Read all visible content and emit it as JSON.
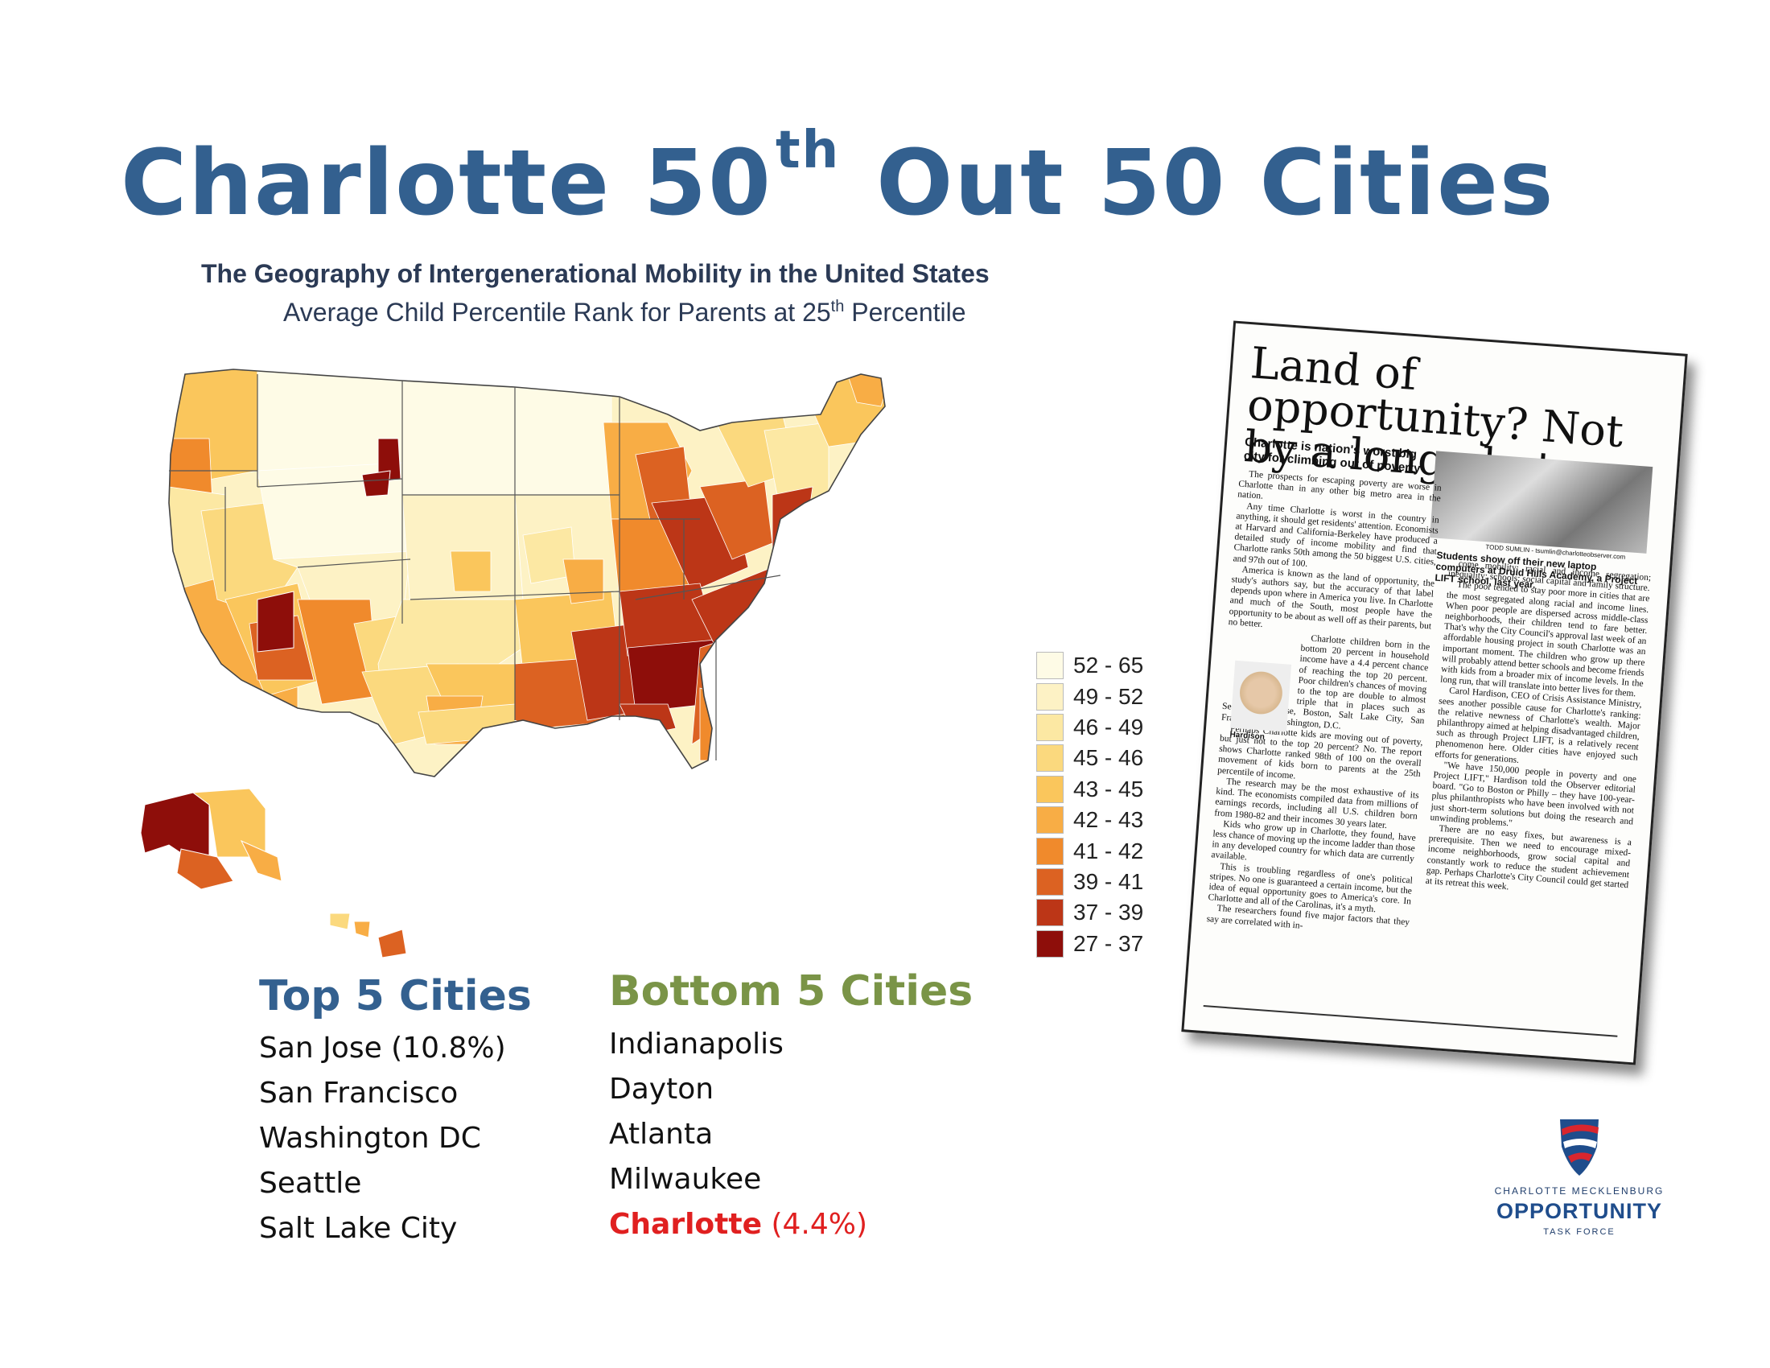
{
  "title": {
    "main": "Charlotte 50",
    "sup": "th",
    "rest": " Out 50 Cities"
  },
  "map": {
    "title": "The Geography of Intergenerational Mobility in the United States",
    "subtitle_a": "Average Child Percentile Rank for Parents at 25",
    "subtitle_sup": "th",
    "subtitle_b": " Percentile",
    "legend": [
      {
        "label": "52 - 65",
        "color": "#fefbe6"
      },
      {
        "label": "49 - 52",
        "color": "#fdf2c5"
      },
      {
        "label": "46 - 49",
        "color": "#fce8a3"
      },
      {
        "label": "45 - 46",
        "color": "#fbd97e"
      },
      {
        "label": "43 - 45",
        "color": "#fac65c"
      },
      {
        "label": "42 - 43",
        "color": "#f8ad45"
      },
      {
        "label": "41 - 42",
        "color": "#f08a2c"
      },
      {
        "label": "39 - 41",
        "color": "#dc6222"
      },
      {
        "label": "37 - 39",
        "color": "#bc3617"
      },
      {
        "label": "27 - 37",
        "color": "#8e0e0a"
      }
    ]
  },
  "top5": {
    "heading": "Top 5 Cities",
    "items": [
      "San Jose (10.8%)",
      "San Francisco",
      "Washington DC",
      "Seattle",
      "Salt Lake City"
    ]
  },
  "bottom5": {
    "heading": "Bottom 5 Cities",
    "items": [
      "Indianapolis",
      "Dayton",
      "Atlanta",
      "Milwaukee"
    ],
    "highlight_city": "Charlotte",
    "highlight_pct": " (4.4%)"
  },
  "clipping": {
    "headline": "Land of opportunity? Not by a long shot",
    "deck": "Charlotte is nation's worst big city for climbing out of poverty",
    "photo_credit": "TODD SUMLIN - tsumlin@charlotteobserver.com",
    "caption": "Students show off their new laptop computers at Druid Hills Academy, a Project LIFT school, last year.",
    "portrait_caption": "Hardison",
    "col_left": [
      "The prospects for escaping poverty are worse in Charlotte than in any other big metro area in the nation.",
      "Any time Charlotte is worst in the country in anything, it should get residents' attention. Economists at Harvard and California-Berkeley have produced a detailed study of income mobility and find that Charlotte ranks 50th among the 50 biggest U.S. cities, and 97th out of 100.",
      "America is known as the land of opportunity, the study's authors say, but the accuracy of that label depends upon where in America you live. In Charlotte and much of the South, most people have the opportunity to be about as well off as their parents, but no better.",
      "Charlotte children born in the bottom 20 percent in household income have a 4.4 percent chance of reaching the top 20 percent. Poor children's chances of moving to the top are double to almost triple that in places such as Seattle, San Jose, Boston, Salt Lake City, San Francisco and Washington, D.C.",
      "Perhaps Charlotte kids are moving out of poverty, but just not to the top 20 percent? No. The report shows Charlotte ranked 98th of 100 on the overall movement of kids born to parents at the 25th percentile of income.",
      "The research may be the most exhaustive of its kind. The economists compiled data from millions of earnings records, including all U.S. children born from 1980-82 and their incomes 30 years later.",
      "Kids who grow up in Charlotte, they found, have less chance of moving up the income ladder than those in any developed country for which data are currently available.",
      "This is troubling regardless of one's political stripes. No one is guaranteed a certain income, but the idea of equal opportunity goes to America's core. In Charlotte and all of the Carolinas, it's a myth.",
      "The researchers found five major factors that they say are correlated with in-"
    ],
    "col_right": [
      "come mobility: racial and income segregation; inequality; schools; social capital and family structure.",
      "The poor tended to stay poor more in cities that are the most segregated along racial and income lines. When poor people are dispersed across middle-class neighborhoods, their children tend to fare better. That's why the City Council's approval last week of an affordable housing project in south Charlotte was an important moment. The children who grow up there will probably attend better schools and become friends with kids from a broader mix of income levels. In the long run, that will translate into better lives for them.",
      "Carol Hardison, CEO of Crisis Assistance Ministry, sees another possible cause for Charlotte's ranking: the relative newness of Charlotte's wealth. Major philanthropy aimed at helping disadvantaged children, such as through Project LIFT, is a relatively recent phenomenon here. Older cities have enjoyed such efforts for generations.",
      "\"We have 150,000 people in poverty and one Project LIFT,\" Hardison told the Observer editorial board. \"Go to Boston or Philly – they have 100-year-plus philanthropists who have been involved with not just short-term solutions but doing the research and unwinding problems.\"",
      "There are no easy fixes, but awareness is a prerequisite. Then we need to encourage mixed-income neighborhoods, grow social capital and constantly work to reduce the student achievement gap. Perhaps Charlotte's City Council could get started at its retreat this week."
    ]
  },
  "logo": {
    "top": "CHARLOTTE MECKLENBURG",
    "main": "OPPORTUNITY",
    "bottom": "TASK FORCE",
    "colors": {
      "red": "#d8262e",
      "blue": "#1f4d8c"
    }
  }
}
